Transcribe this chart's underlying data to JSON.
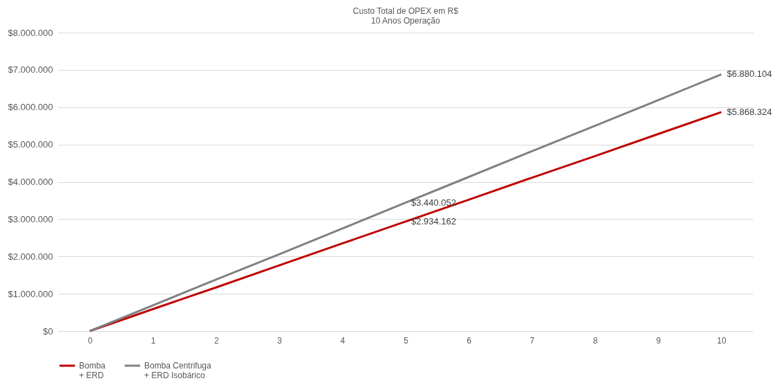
{
  "chart_data": {
    "type": "line",
    "title": "Custo Total de OPEX em R$",
    "subtitle": "10 Anos Operação",
    "categories": [
      "0",
      "1",
      "2",
      "3",
      "4",
      "5",
      "6",
      "7",
      "8",
      "9",
      "10"
    ],
    "series": [
      {
        "name": "Bomba + ERD",
        "color": "#c00000",
        "values": [
          0,
          590000,
          1170000,
          1760000,
          2350000,
          2934162,
          3520000,
          4110000,
          4690000,
          5280000,
          5868324
        ],
        "value_labels": [
          null,
          null,
          null,
          null,
          null,
          "$2.934.162",
          null,
          null,
          null,
          null,
          "$5.868.324"
        ]
      },
      {
        "name": "Bomba Centrifuga + ERD Isobárico",
        "color": "#808080",
        "values": [
          0,
          690000,
          1380000,
          2060000,
          2750000,
          3440052,
          4130000,
          4820000,
          5500000,
          6190000,
          6880104
        ],
        "value_labels": [
          null,
          null,
          null,
          null,
          null,
          "$3.440.052",
          null,
          null,
          null,
          null,
          "$6.880.104"
        ]
      }
    ],
    "ylim": [
      0,
      8000000
    ],
    "yticks": [
      {
        "value": 0,
        "label": "$0"
      },
      {
        "value": 1000000,
        "label": "$1.000.000"
      },
      {
        "value": 2000000,
        "label": "$2.000.000"
      },
      {
        "value": 3000000,
        "label": "$3.000.000"
      },
      {
        "value": 4000000,
        "label": "$4.000.000"
      },
      {
        "value": 5000000,
        "label": "$5.000.000"
      },
      {
        "value": 6000000,
        "label": "$6.000.000"
      },
      {
        "value": 7000000,
        "label": "$7.000.000"
      },
      {
        "value": 8000000,
        "label": "$8.000.000"
      }
    ],
    "grid": "y",
    "legend": "bottom",
    "marker": "none",
    "line_style": "solid"
  }
}
